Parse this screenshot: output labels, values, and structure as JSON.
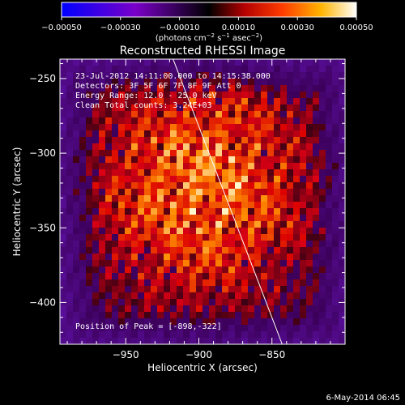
{
  "chart_data": {
    "type": "heatmap",
    "title": "Reconstructed RHESSI Image",
    "xlabel": "Heliocentric X (arcsec)",
    "ylabel": "Heliocentric Y (arcsec)",
    "xlim": [
      -995,
      -800
    ],
    "ylim": [
      -428,
      -237
    ],
    "x_ticks": [
      -950,
      -900,
      -850
    ],
    "y_ticks": [
      -250,
      -300,
      -350,
      -400
    ],
    "x_tick_labels": [
      "−950",
      "−900",
      "−850"
    ],
    "y_tick_labels": [
      "−250",
      "−300",
      "−350",
      "−400"
    ],
    "colorbar": {
      "range": [
        -0.0005,
        0.0005
      ],
      "ticks": [
        -0.0005,
        -0.0003,
        -0.0001,
        0.0001,
        0.0003,
        0.0005
      ],
      "tick_labels": [
        "−0.00050",
        "−0.00030",
        "−0.00010",
        "0.00010",
        "0.00030",
        "0.00050"
      ],
      "unit_prefix": "(photons cm",
      "unit_exp1": "−2",
      "unit_mid1": " s",
      "unit_exp2": "−1",
      "unit_mid2": " asec",
      "unit_exp3": "−2",
      "unit_suffix": ")"
    },
    "annotations": [
      "23-Jul-2012 14:11:00.000 to 14:15:38.000",
      "Detectors: 3F 5F 6F 7F 8F 9F  Att 0",
      "Energy Range: 12.0 - 25.0 keV",
      "Clean     Total counts: 3.24E+03"
    ],
    "peak_label": "Position of Peak = [-898,-322]",
    "peak": [
      -898,
      -322
    ],
    "limb_line": [
      [
        -918,
        -236
      ],
      [
        -843,
        -428
      ]
    ],
    "colormap": "hot (black-red-orange-yellow-white) with purple/blue negatives"
  },
  "timestamp": "6-May-2014 06:45",
  "colors": {
    "background": "#000000",
    "text": "#ffffff"
  }
}
